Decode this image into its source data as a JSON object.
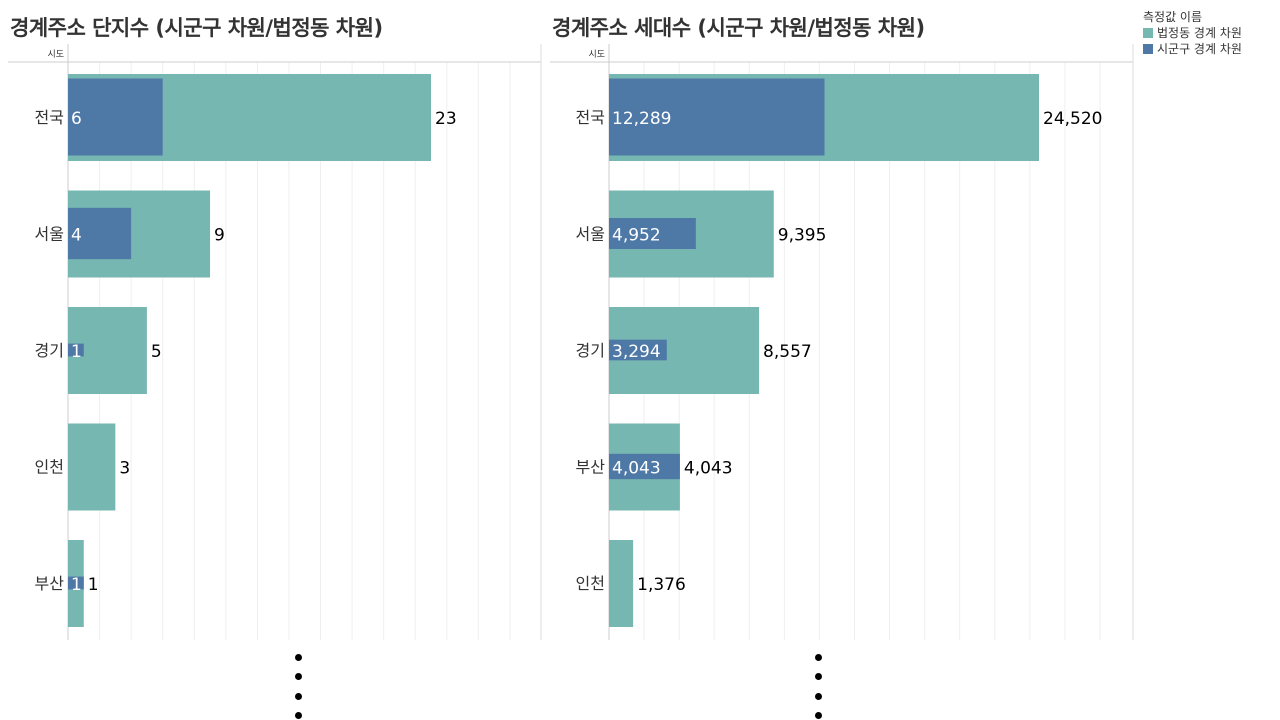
{
  "legend": {
    "title": "측정값 이름",
    "items": [
      {
        "label": "법정동 경계 차원",
        "color": "#76b7b2"
      },
      {
        "label": "시군구 경계 차원",
        "color": "#4e79a7"
      }
    ]
  },
  "chart_data": [
    {
      "type": "bar",
      "title": "경계주소 단지수 (시군구 차원/법정동 차원)",
      "ylabel": "시도",
      "categories": [
        "전국",
        "서울",
        "경기",
        "인천",
        "부산"
      ],
      "series": [
        {
          "name": "법정동 경계 차원",
          "values": [
            23,
            9,
            5,
            3,
            1
          ],
          "labels": [
            "23",
            "9",
            "5",
            "3",
            "1"
          ]
        },
        {
          "name": "시군구 경계 차원",
          "values": [
            6,
            4,
            1,
            null,
            1
          ],
          "labels": [
            "6",
            "4",
            "1",
            "",
            "1"
          ]
        }
      ],
      "xlim": [
        0,
        30
      ],
      "grid_step": 2
    },
    {
      "type": "bar",
      "title": "경계주소 세대수 (시군구 차원/법정동 차원)",
      "ylabel": "시도",
      "categories": [
        "전국",
        "서울",
        "경기",
        "부산",
        "인천"
      ],
      "series": [
        {
          "name": "법정동 경계 차원",
          "values": [
            24520,
            9395,
            8557,
            4043,
            1376
          ],
          "labels": [
            "24,520",
            "9,395",
            "8,557",
            "4,043",
            "1,376"
          ]
        },
        {
          "name": "시군구 경계 차원",
          "values": [
            12289,
            4952,
            3294,
            4043,
            null
          ],
          "labels": [
            "12,289",
            "4,952",
            "3,294",
            "4,043",
            ""
          ]
        }
      ],
      "xlim": [
        0,
        30000
      ],
      "grid_step": 2000
    }
  ]
}
